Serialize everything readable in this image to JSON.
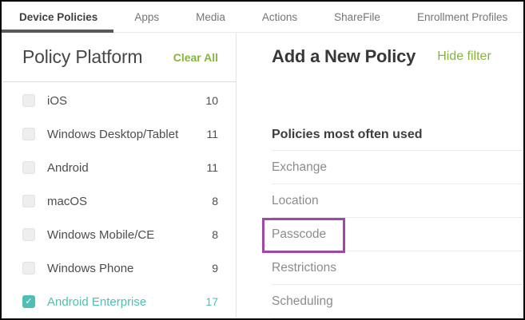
{
  "tabs": {
    "items": [
      {
        "label": "Device Policies",
        "active": true
      },
      {
        "label": "Apps",
        "active": false
      },
      {
        "label": "Media",
        "active": false
      },
      {
        "label": "Actions",
        "active": false
      },
      {
        "label": "ShareFile",
        "active": false
      },
      {
        "label": "Enrollment Profiles",
        "active": false
      }
    ]
  },
  "filter_panel": {
    "title": "Policy Platform",
    "clear_all_label": "Clear All",
    "platforms": [
      {
        "label": "iOS",
        "count": "10",
        "checked": false
      },
      {
        "label": "Windows Desktop/Tablet",
        "count": "11",
        "checked": false
      },
      {
        "label": "Android",
        "count": "11",
        "checked": false
      },
      {
        "label": "macOS",
        "count": "8",
        "checked": false
      },
      {
        "label": "Windows Mobile/CE",
        "count": "8",
        "checked": false
      },
      {
        "label": "Windows Phone",
        "count": "9",
        "checked": false
      },
      {
        "label": "Android Enterprise",
        "count": "17",
        "checked": true
      }
    ],
    "checkmark_glyph": "✓"
  },
  "main_panel": {
    "title": "Add a New Policy",
    "hide_filter_label": "Hide filter",
    "section_heading": "Policies most often used",
    "policies": [
      {
        "label": "Exchange",
        "highlighted": false
      },
      {
        "label": "Location",
        "highlighted": false
      },
      {
        "label": "Passcode",
        "highlighted": true
      },
      {
        "label": "Restrictions",
        "highlighted": false
      },
      {
        "label": "Scheduling",
        "highlighted": false
      }
    ]
  },
  "colors": {
    "accent_green": "#86b440",
    "accent_teal": "#4ebfb2",
    "highlight_purple": "#a347a7",
    "active_tab_text": "#3f3f3f",
    "inactive_tab_text": "#757575",
    "policy_item_text": "#8c8c8c"
  }
}
